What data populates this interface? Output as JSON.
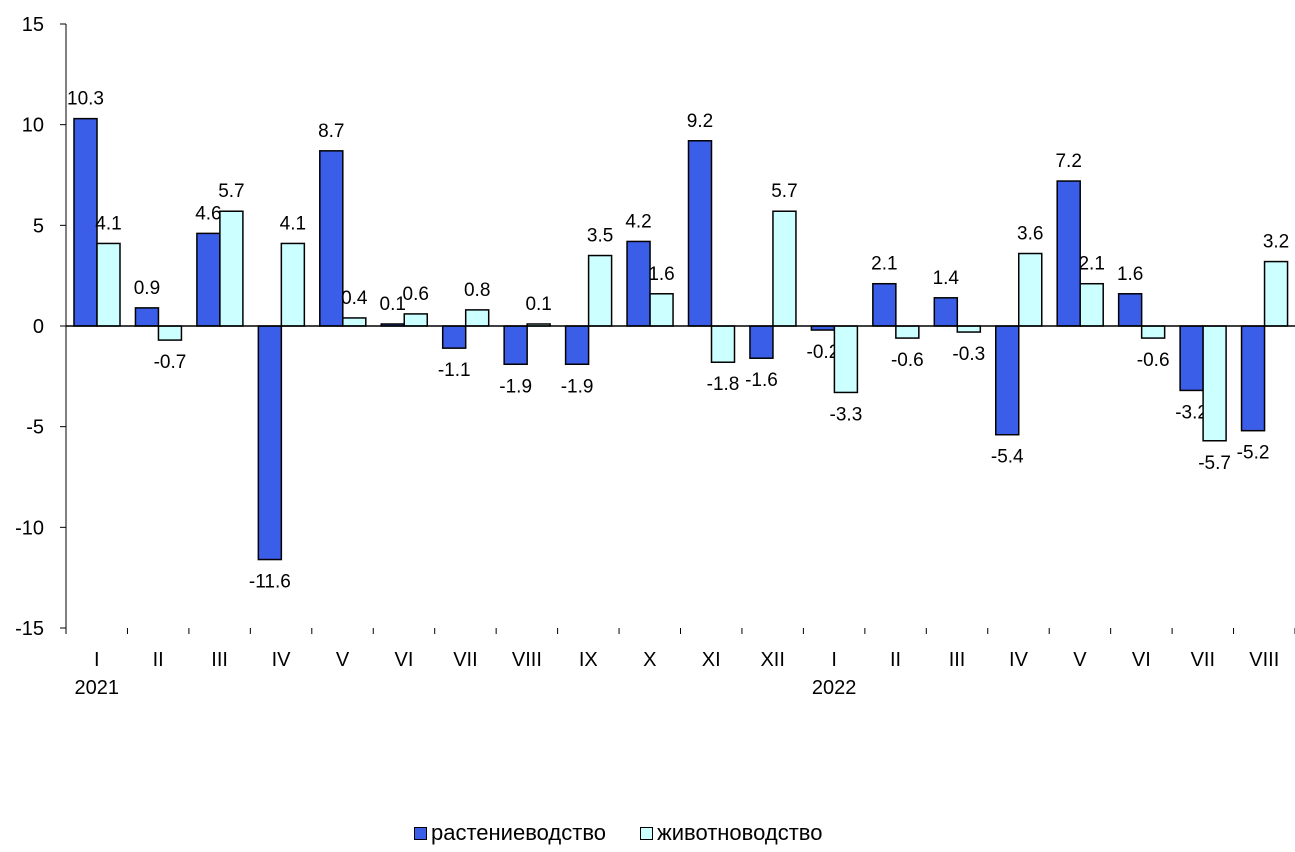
{
  "chart_data": {
    "type": "bar",
    "categories": [
      "I",
      "II",
      "III",
      "IV",
      "V",
      "VI",
      "VII",
      "VIII",
      "IX",
      "X",
      "XI",
      "XII",
      "I",
      "II",
      "III",
      "IV",
      "V",
      "VI",
      "VII",
      "VIII"
    ],
    "year_labels": [
      {
        "index": 0,
        "label": "2021"
      },
      {
        "index": 12,
        "label": "2022"
      }
    ],
    "series": [
      {
        "name": "растениеводство",
        "color": "#3b5ee8",
        "values": [
          10.3,
          0.9,
          4.6,
          -11.6,
          8.7,
          0.1,
          -1.1,
          -1.9,
          -1.9,
          4.2,
          9.2,
          -1.6,
          -0.2,
          2.1,
          1.4,
          -5.4,
          7.2,
          1.6,
          -3.2,
          -5.2
        ]
      },
      {
        "name": "животноводство",
        "color": "#ccffff",
        "values": [
          4.1,
          -0.7,
          5.7,
          4.1,
          0.4,
          0.6,
          0.8,
          0.1,
          3.5,
          1.6,
          -1.8,
          5.7,
          -3.3,
          -0.6,
          -0.3,
          3.6,
          2.1,
          -0.6,
          -5.7,
          3.2
        ]
      }
    ],
    "y_ticks": [
      "15",
      "10",
      "5",
      "0",
      "-5",
      "-10",
      "-15"
    ],
    "ylim": [
      -15,
      15
    ],
    "grid": false,
    "legend_position": "bottom"
  }
}
